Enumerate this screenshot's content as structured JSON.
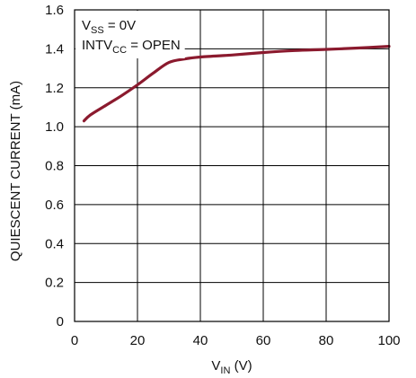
{
  "chart_data": {
    "type": "line",
    "title": "",
    "xlabel": {
      "main": "V",
      "sub": "IN",
      "unit": " (V)"
    },
    "ylabel": "QUIESCENT CURRENT (mA)",
    "xlim": [
      0,
      100
    ],
    "ylim": [
      0,
      1.6
    ],
    "x_ticks": [
      0,
      20,
      40,
      60,
      80,
      100
    ],
    "x_tick_labels": [
      "0",
      "20",
      "40",
      "60",
      "80",
      "100"
    ],
    "y_ticks": [
      0,
      0.2,
      0.4,
      0.6,
      0.8,
      1.0,
      1.2,
      1.4,
      1.6
    ],
    "y_tick_labels": [
      "0",
      "0.2",
      "0.4",
      "0.6",
      "0.8",
      "1.0",
      "1.2",
      "1.4",
      "1.6"
    ],
    "grid": true,
    "annotations": [
      {
        "main": "V",
        "sub": "SS",
        "rest": " = 0V"
      },
      {
        "main": "INTV",
        "sub": "CC",
        "rest": " = OPEN"
      }
    ],
    "series": [
      {
        "color": "#8b1a2e",
        "x": [
          3,
          5,
          10,
          15,
          20,
          25,
          30,
          35,
          40,
          50,
          60,
          70,
          80,
          90,
          100
        ],
        "y": [
          1.03,
          1.06,
          1.11,
          1.16,
          1.215,
          1.275,
          1.33,
          1.348,
          1.358,
          1.368,
          1.381,
          1.391,
          1.397,
          1.404,
          1.413
        ]
      }
    ]
  }
}
